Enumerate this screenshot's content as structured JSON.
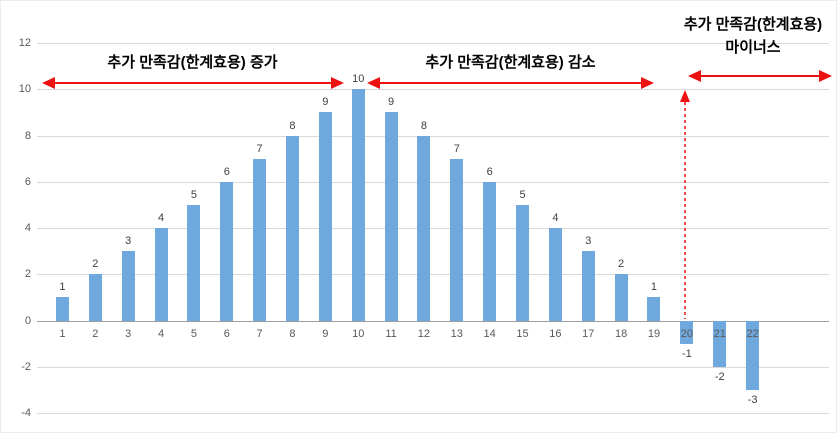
{
  "chart_data": {
    "type": "bar",
    "categories": [
      1,
      2,
      3,
      4,
      5,
      6,
      7,
      8,
      9,
      10,
      11,
      12,
      13,
      14,
      15,
      16,
      17,
      18,
      19,
      20,
      21,
      22
    ],
    "values": [
      1,
      2,
      3,
      4,
      5,
      6,
      7,
      8,
      9,
      10,
      9,
      8,
      7,
      6,
      5,
      4,
      3,
      2,
      1,
      -1,
      -2,
      -3
    ],
    "title": "",
    "xlabel": "",
    "ylabel": "",
    "ylim": [
      -4,
      12
    ],
    "ytick_step": 2,
    "yticks": [
      12,
      10,
      8,
      6,
      4,
      2,
      0,
      -2,
      -4
    ],
    "grid": true,
    "legend": false,
    "bar_color": "#6FA8DC",
    "gridline_color": "#D9D9D9",
    "axis_color": "#9E9E9E",
    "tick_label_color": "#595959",
    "value_label_color": "#404040",
    "annotations": {
      "increase_label": "추가 만족감(한계효용) 증가",
      "decrease_label": "추가 만족감(한계효용) 감소",
      "minus_label_line1": "추가 만족감(한계효용)",
      "minus_label_line2": "마이너스",
      "arrow_color": "#EE1111",
      "text_color": "#000000"
    }
  }
}
